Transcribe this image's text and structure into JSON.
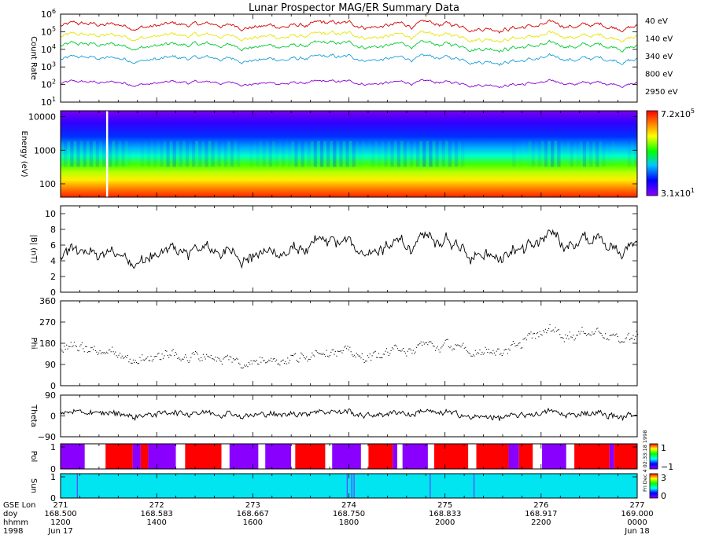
{
  "chart_data": {
    "type": "line",
    "title": "Lunar Prospector MAG/ER Summary Data",
    "panels": [
      {
        "id": "count-rate",
        "type": "line",
        "ylabel": "Count Rate",
        "yscale": "log",
        "ylim": [
          10,
          1000000
        ],
        "yticks": [
          {
            "v": 1000000,
            "base": "10",
            "exp": "6"
          },
          {
            "v": 100000,
            "base": "10",
            "exp": "5"
          },
          {
            "v": 10000,
            "base": "10",
            "exp": "4"
          },
          {
            "v": 1000,
            "base": "10",
            "exp": "3"
          },
          {
            "v": 100,
            "base": "10",
            "exp": "2"
          },
          {
            "v": 10,
            "base": "10",
            "exp": "1"
          }
        ],
        "series": [
          {
            "name": "40 eV",
            "color": "#d40000",
            "level": 220000,
            "var": 0.35
          },
          {
            "name": "140 eV",
            "color": "#e6e600",
            "level": 55000,
            "var": 0.32
          },
          {
            "name": "340 eV",
            "color": "#00cc33",
            "level": 16000,
            "var": 0.32
          },
          {
            "name": "800 eV",
            "color": "#1a9fd9",
            "level": 2800,
            "var": 0.3
          },
          {
            "name": "2950 eV",
            "color": "#8a00d4",
            "level": 120,
            "var": 0.22
          }
        ]
      },
      {
        "id": "energy",
        "type": "heatmap",
        "ylabel": "Energy (eV)",
        "yscale": "log",
        "ylim": [
          40,
          15000
        ],
        "yticks": [
          "10000",
          "1000",
          "100"
        ],
        "colorbar": {
          "max": {
            "base": "7.2x10",
            "exp": "5"
          },
          "min": {
            "base": "3.1x10",
            "exp": "1"
          }
        }
      },
      {
        "id": "b-magnitude",
        "type": "line",
        "ylabel": "|B| (nT)",
        "ylim": [
          0,
          11
        ],
        "yticks": [
          "10",
          "8",
          "6",
          "4",
          "2",
          "0"
        ],
        "color": "#000000"
      },
      {
        "id": "phi",
        "type": "scatter",
        "ylabel": "Phi",
        "ylim": [
          0,
          360
        ],
        "yticks": [
          "360",
          "270",
          "180",
          "90",
          "0"
        ],
        "color": "#000000"
      },
      {
        "id": "theta",
        "type": "line",
        "ylabel": "Theta",
        "ylim": [
          -90,
          90
        ],
        "yticks": [
          "90",
          "0",
          "−90"
        ],
        "color": "#000000"
      },
      {
        "id": "pol",
        "type": "heatmap",
        "ylabel": "Pol",
        "yticks": [
          "1",
          "0"
        ],
        "colorbar": {
          "ticks": [
            "1",
            "−1"
          ],
          "colors": [
            "#ff0000",
            "#ffff00",
            "#00ff00",
            "#00ffff",
            "#0000ff",
            "#8a00ff"
          ]
        },
        "segments": [
          {
            "from": 168.5,
            "to": 168.521,
            "color": "#8a00ff"
          },
          {
            "from": 168.521,
            "to": 168.539,
            "color": "#ffffff"
          },
          {
            "from": 168.539,
            "to": 168.5625,
            "color": "#ff0000"
          },
          {
            "from": 168.5625,
            "to": 168.5695,
            "color": "#8a00ff"
          },
          {
            "from": 168.5695,
            "to": 168.576,
            "color": "#ff0000"
          },
          {
            "from": 168.576,
            "to": 168.6,
            "color": "#8a00ff"
          },
          {
            "from": 168.6,
            "to": 168.608,
            "color": "#ffffff"
          },
          {
            "from": 168.608,
            "to": 168.6395,
            "color": "#ff0000"
          },
          {
            "from": 168.6395,
            "to": 168.6465,
            "color": "#ffffff"
          },
          {
            "from": 168.6465,
            "to": 168.6715,
            "color": "#8a00ff"
          },
          {
            "from": 168.6715,
            "to": 168.6775,
            "color": "#ffffff"
          },
          {
            "from": 168.6775,
            "to": 168.7,
            "color": "#8a00ff"
          },
          {
            "from": 168.7,
            "to": 168.7035,
            "color": "#ffffff"
          },
          {
            "from": 168.7035,
            "to": 168.7295,
            "color": "#ff0000"
          },
          {
            "from": 168.7295,
            "to": 168.7355,
            "color": "#ffffff"
          },
          {
            "from": 168.7355,
            "to": 168.7605,
            "color": "#8a00ff"
          },
          {
            "from": 168.7605,
            "to": 168.767,
            "color": "#ffffff"
          },
          {
            "from": 168.767,
            "to": 168.788,
            "color": "#ff0000"
          },
          {
            "from": 168.788,
            "to": 168.792,
            "color": "#8a00ff"
          },
          {
            "from": 168.792,
            "to": 168.7965,
            "color": "#ffffff"
          },
          {
            "from": 168.7965,
            "to": 168.8185,
            "color": "#8a00ff"
          },
          {
            "from": 168.8185,
            "to": 168.824,
            "color": "#ffffff"
          },
          {
            "from": 168.824,
            "to": 168.8535,
            "color": "#ff0000"
          },
          {
            "from": 168.8535,
            "to": 168.8605,
            "color": "#ffffff"
          },
          {
            "from": 168.8605,
            "to": 168.8885,
            "color": "#ff0000"
          },
          {
            "from": 168.8885,
            "to": 168.8975,
            "color": "#8a00ff"
          },
          {
            "from": 168.8975,
            "to": 168.9095,
            "color": "#ff0000"
          },
          {
            "from": 168.9095,
            "to": 168.9175,
            "color": "#ffffff"
          },
          {
            "from": 168.9175,
            "to": 168.9385,
            "color": "#8a00ff"
          },
          {
            "from": 168.9385,
            "to": 168.9455,
            "color": "#ffffff"
          },
          {
            "from": 168.9455,
            "to": 168.976,
            "color": "#ff0000"
          },
          {
            "from": 168.976,
            "to": 168.98,
            "color": "#8a00ff"
          },
          {
            "from": 168.98,
            "to": 169.0,
            "color": "#ff0000"
          }
        ]
      },
      {
        "id": "sun",
        "type": "heatmap",
        "ylabel": "Sun",
        "yticks": [
          "1",
          "0"
        ],
        "fill": "#00e5f0",
        "marks": [
          168.5145,
          168.7485,
          168.7525,
          168.7545,
          168.8205,
          168.8585
        ],
        "mark_color": "#6a3aff",
        "colorbar": {
          "ticks": [
            "3",
            "0"
          ],
          "colors": [
            "#ff0000",
            "#ffff00",
            "#00ff00",
            "#00ffff",
            "#0000ff",
            "#8a00ff"
          ]
        }
      }
    ],
    "side_note": "Fri Dec 4 02:33:18 1998",
    "xaxis": {
      "range": [
        168.5,
        169.0
      ],
      "row_labels": [
        "GSE Lon",
        "doy",
        "hhmm",
        "1998"
      ],
      "ticks": [
        {
          "lon": "271",
          "doy": "168.500",
          "hhmm": "1200",
          "date": "Jun 17"
        },
        {
          "lon": "272",
          "doy": "168.583",
          "hhmm": "1400",
          "date": ""
        },
        {
          "lon": "273",
          "doy": "168.667",
          "hhmm": "1600",
          "date": ""
        },
        {
          "lon": "274",
          "doy": "168.750",
          "hhmm": "1800",
          "date": ""
        },
        {
          "lon": "275",
          "doy": "168.833",
          "hhmm": "2000",
          "date": ""
        },
        {
          "lon": "276",
          "doy": "168.917",
          "hhmm": "2200",
          "date": ""
        },
        {
          "lon": "277",
          "doy": "169.000",
          "hhmm": "0000",
          "date": "Jun 18"
        }
      ]
    }
  }
}
